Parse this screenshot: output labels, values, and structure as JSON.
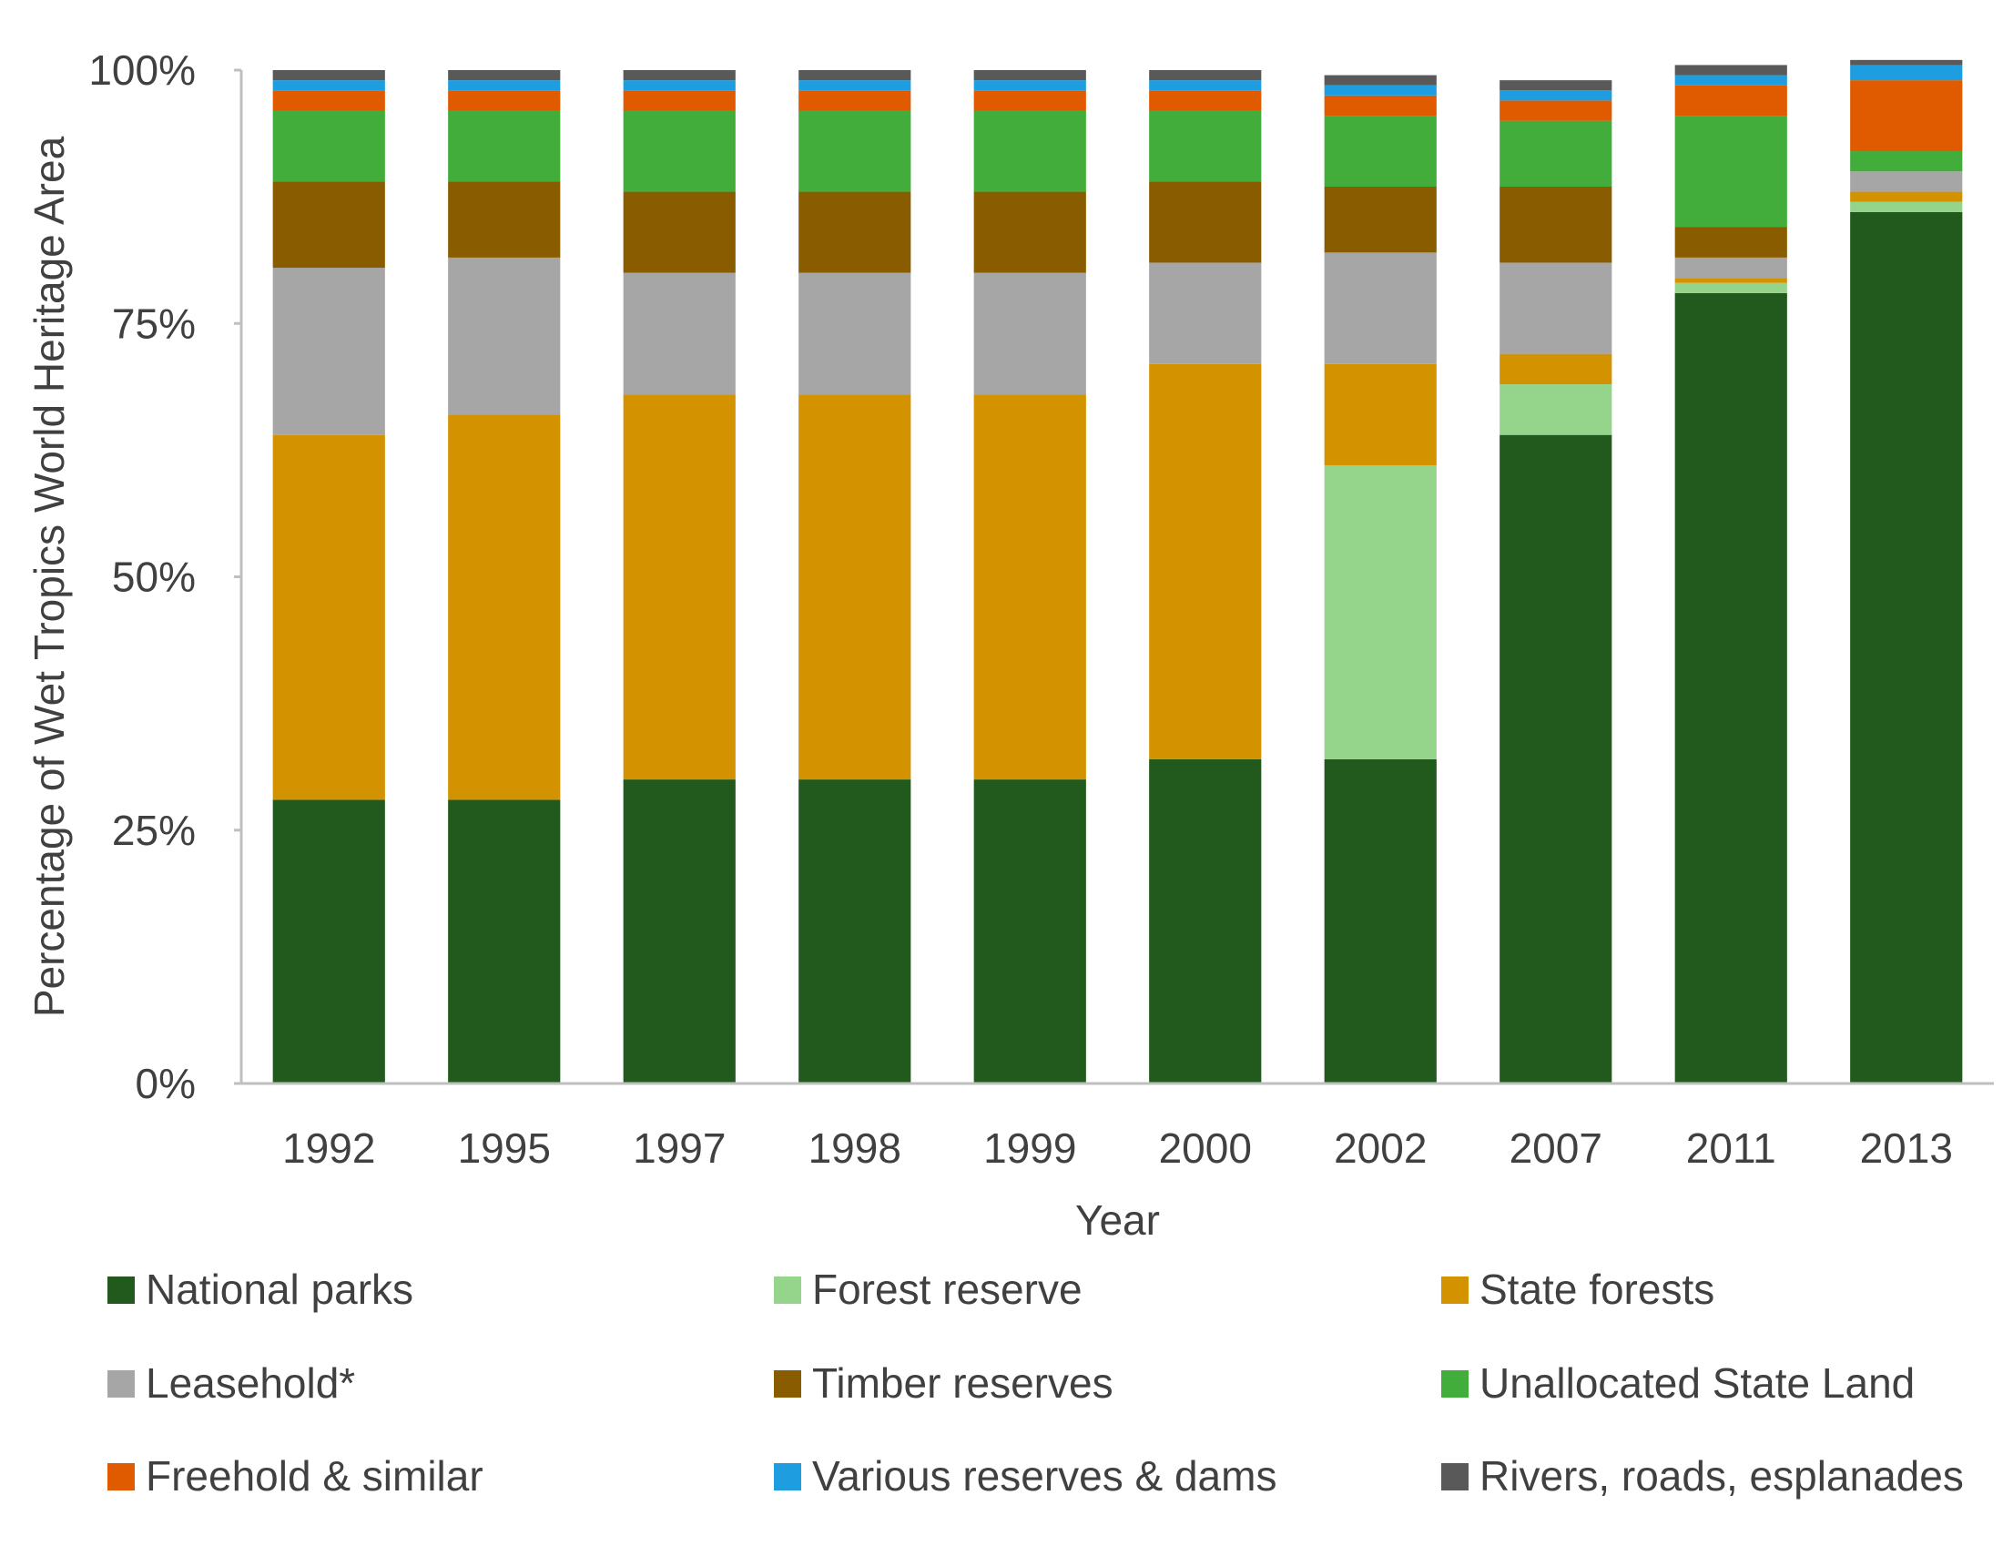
{
  "chart_data": {
    "type": "bar",
    "stacked": true,
    "xlabel": "Year",
    "ylabel": "Percentage of Wet Tropics World Heritage Area",
    "ylim": [
      0,
      100
    ],
    "yticks": [
      0,
      25,
      50,
      75,
      100
    ],
    "ytick_labels": [
      "0%",
      "25%",
      "50%",
      "75%",
      "100%"
    ],
    "grid": false,
    "legend_position": "bottom",
    "categories": [
      "1992",
      "1995",
      "1997",
      "1998",
      "1999",
      "2000",
      "2002",
      "2007",
      "2011",
      "2013"
    ],
    "series": [
      {
        "name": "National parks",
        "color": "#215a1c",
        "values": [
          28,
          28,
          30,
          30,
          30,
          32,
          32,
          64,
          78,
          86
        ]
      },
      {
        "name": "Forest reserve",
        "color": "#95d58b",
        "values": [
          0,
          0,
          0,
          0,
          0,
          0,
          29,
          5,
          1,
          1
        ]
      },
      {
        "name": "State forests",
        "color": "#d39200",
        "values": [
          36,
          38,
          38,
          38,
          38,
          39,
          10,
          3,
          0.5,
          1
        ]
      },
      {
        "name": "Leasehold*",
        "color": "#a6a6a6",
        "values": [
          16.5,
          15.5,
          12,
          12,
          12,
          10,
          11,
          9,
          2,
          2
        ]
      },
      {
        "name": "Timber reserves",
        "color": "#8a5c00",
        "values": [
          8.5,
          7.5,
          8,
          8,
          8,
          8,
          6.5,
          7.5,
          3,
          0
        ]
      },
      {
        "name": "Unallocated State Land",
        "color": "#42ad3b",
        "values": [
          7,
          7,
          8,
          8,
          8,
          7,
          7,
          6.5,
          11,
          2
        ]
      },
      {
        "name": "Freehold & similar",
        "color": "#e05a00",
        "values": [
          2,
          2,
          2,
          2,
          2,
          2,
          2,
          2,
          3,
          7
        ]
      },
      {
        "name": "Various reserves & dams",
        "color": "#1e9ee0",
        "values": [
          1,
          1,
          1,
          1,
          1,
          1,
          1,
          1,
          1,
          1.5
        ]
      },
      {
        "name": "Rivers, roads, esplanades",
        "color": "#595959",
        "values": [
          1,
          1,
          1,
          1,
          1,
          1,
          1,
          1,
          1,
          0.5
        ]
      }
    ]
  }
}
